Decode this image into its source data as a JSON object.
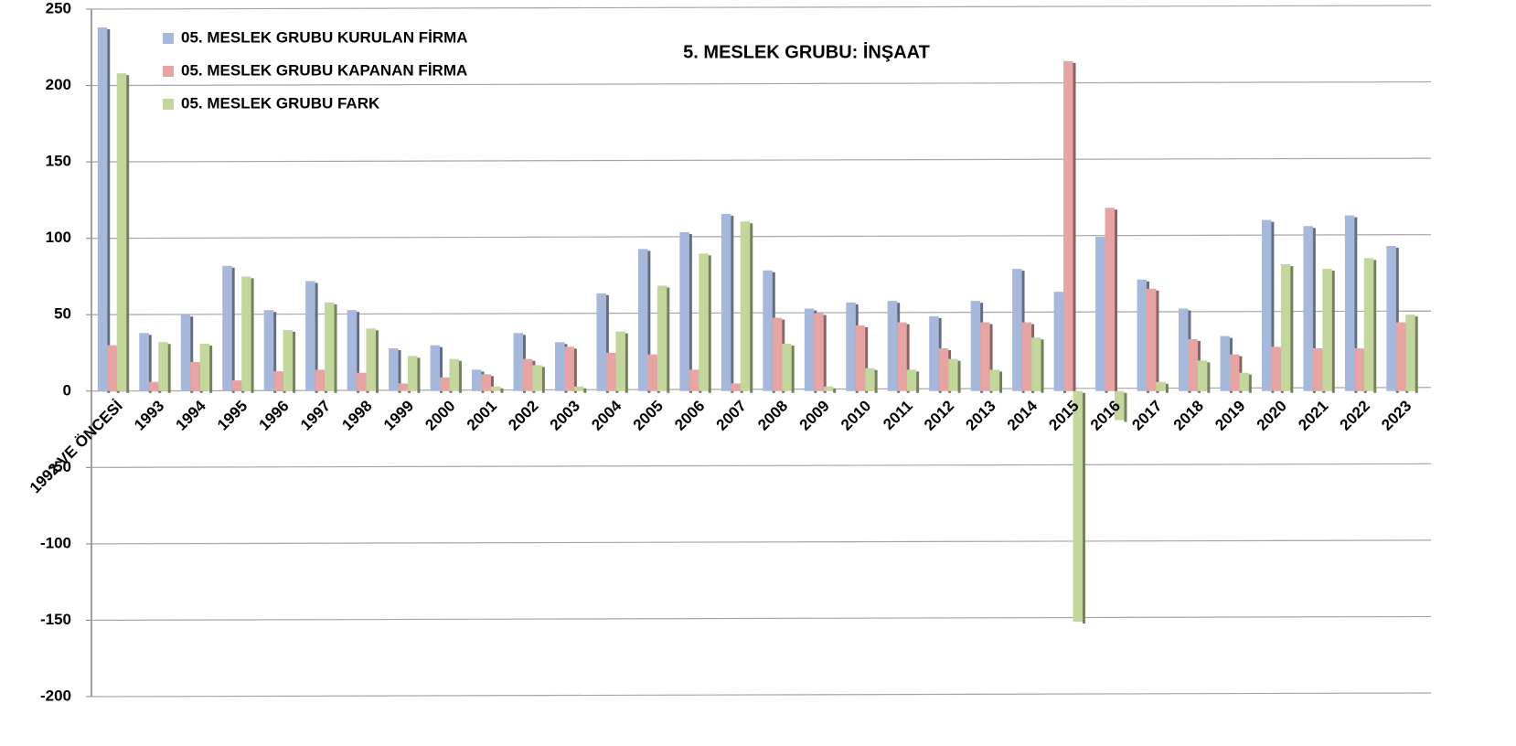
{
  "chart_data": {
    "type": "bar",
    "title": "5. MESLEK GRUBU: İNŞAAT",
    "categories": [
      "1992 VE ÖNCESİ",
      "1993",
      "1994",
      "1995",
      "1996",
      "1997",
      "1998",
      "1999",
      "2000",
      "2001",
      "2002",
      "2003",
      "2004",
      "2005",
      "2006",
      "2007",
      "2008",
      "2009",
      "2010",
      "2011",
      "2012",
      "2013",
      "2014",
      "2015",
      "2016",
      "2017",
      "2018",
      "2019",
      "2020",
      "2021",
      "2022",
      "2023"
    ],
    "series": [
      {
        "name": "05. MESLEK GRUBU KURULAN FİRMA",
        "color": "#a6b8db",
        "values": [
          238,
          38,
          50,
          82,
          53,
          72,
          53,
          28,
          30,
          14,
          38,
          32,
          64,
          93,
          104,
          116,
          79,
          54,
          58,
          59,
          49,
          59,
          80,
          65,
          101,
          73,
          54,
          36,
          112,
          108,
          115,
          95
        ]
      },
      {
        "name": "05. MESLEK GRUBU KAPANAN FİRMA",
        "color": "#e6a5a3",
        "values": [
          30,
          6,
          19,
          7,
          13,
          14,
          12,
          5,
          9,
          11,
          21,
          29,
          25,
          24,
          14,
          5,
          48,
          51,
          43,
          45,
          28,
          45,
          45,
          216,
          120,
          67,
          34,
          24,
          29,
          28,
          28,
          45
        ]
      },
      {
        "name": "05. MESLEK GRUBU FARK",
        "color": "#c3d69b",
        "values": [
          208,
          32,
          31,
          75,
          40,
          58,
          41,
          23,
          21,
          3,
          17,
          3,
          39,
          69,
          90,
          111,
          31,
          3,
          15,
          14,
          21,
          14,
          35,
          -151,
          -19,
          6,
          20,
          12,
          83,
          80,
          87,
          50
        ]
      }
    ],
    "ylim": [
      -200,
      250
    ],
    "yticks": [
      -200,
      -150,
      -100,
      -50,
      0,
      50,
      100,
      150,
      200,
      250
    ],
    "grid": true,
    "legend": "top-left"
  }
}
